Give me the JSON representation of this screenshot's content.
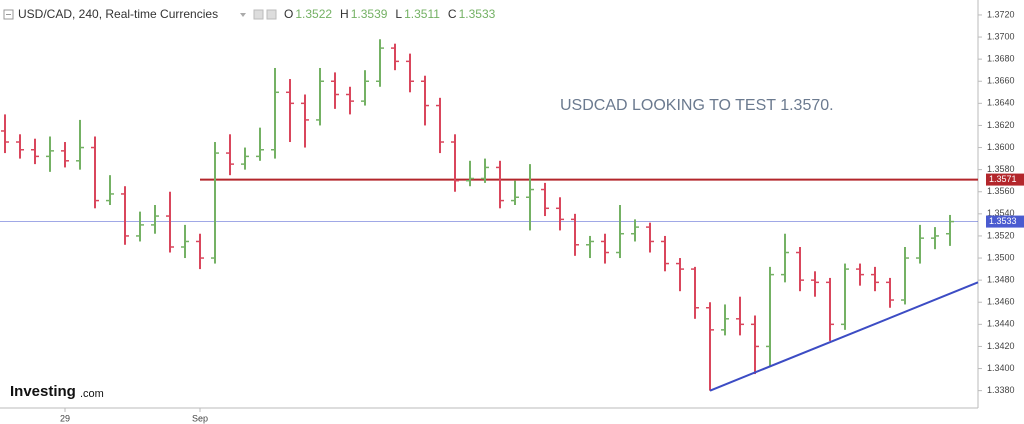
{
  "chart_data": {
    "type": "ohlc",
    "title": "USD/CAD, 240, Real-time Currencies",
    "header_labels": [
      "O",
      "H",
      "L",
      "C"
    ],
    "categories": [
      null,
      null,
      null,
      null,
      "29",
      null,
      null,
      null,
      null,
      null,
      null,
      null,
      null,
      "Sep",
      null,
      null,
      null,
      null,
      null,
      null,
      null,
      null,
      null,
      null,
      null,
      null,
      null,
      null,
      null,
      null,
      null,
      null,
      null,
      null,
      null,
      null,
      null,
      null,
      null,
      null,
      null,
      null,
      null,
      null,
      null,
      null,
      null,
      null,
      null,
      null,
      null,
      null,
      null,
      null,
      null,
      null,
      null,
      null,
      null,
      null,
      null,
      null,
      null,
      null
    ],
    "open": [
      1.3615,
      1.3605,
      1.3598,
      1.3592,
      1.3597,
      1.3588,
      1.36,
      1.3552,
      1.3558,
      1.352,
      1.353,
      1.3538,
      1.351,
      1.3515,
      1.35,
      1.3595,
      1.3585,
      1.3592,
      1.3598,
      1.365,
      1.364,
      1.3625,
      1.366,
      1.3648,
      1.3642,
      1.366,
      1.369,
      1.3678,
      1.366,
      1.3638,
      1.3605,
      1.357,
      1.3572,
      1.3582,
      1.3552,
      1.3555,
      1.3562,
      1.3545,
      1.3535,
      1.3512,
      1.3515,
      1.3505,
      1.3522,
      1.3528,
      1.3515,
      1.3495,
      1.349,
      1.3455,
      1.3435,
      1.3445,
      1.344,
      1.342,
      1.3485,
      1.3505,
      1.348,
      1.3478,
      1.344,
      1.349,
      1.3485,
      1.3478,
      1.3462,
      1.35,
      1.3518,
      1.3522
    ],
    "high": [
      1.363,
      1.3612,
      1.3608,
      1.361,
      1.3605,
      1.3625,
      1.361,
      1.3575,
      1.3565,
      1.3542,
      1.3548,
      1.356,
      1.353,
      1.3522,
      1.3605,
      1.3612,
      1.36,
      1.3618,
      1.3672,
      1.3662,
      1.3648,
      1.3672,
      1.3668,
      1.3655,
      1.367,
      1.3698,
      1.3694,
      1.3685,
      1.3665,
      1.3645,
      1.3612,
      1.3588,
      1.359,
      1.3588,
      1.357,
      1.3585,
      1.3568,
      1.3555,
      1.354,
      1.352,
      1.3522,
      1.3548,
      1.3535,
      1.3532,
      1.352,
      1.35,
      1.3492,
      1.346,
      1.3458,
      1.3465,
      1.3448,
      1.3492,
      1.3522,
      1.351,
      1.3488,
      1.3482,
      1.3495,
      1.3495,
      1.3492,
      1.3482,
      1.351,
      1.353,
      1.3528,
      1.3539
    ],
    "low": [
      1.3595,
      1.359,
      1.3585,
      1.3578,
      1.3582,
      1.358,
      1.3545,
      1.3548,
      1.3512,
      1.3515,
      1.3522,
      1.3505,
      1.35,
      1.349,
      1.3495,
      1.3575,
      1.358,
      1.3588,
      1.359,
      1.3605,
      1.36,
      1.362,
      1.3635,
      1.363,
      1.3638,
      1.3655,
      1.367,
      1.365,
      1.362,
      1.3595,
      1.356,
      1.3565,
      1.3568,
      1.3545,
      1.3548,
      1.3525,
      1.3538,
      1.3525,
      1.3502,
      1.35,
      1.3495,
      1.35,
      1.3515,
      1.3505,
      1.3488,
      1.347,
      1.3445,
      1.338,
      1.343,
      1.343,
      1.3395,
      1.3402,
      1.3478,
      1.347,
      1.3465,
      1.3425,
      1.3435,
      1.3475,
      1.347,
      1.3455,
      1.3458,
      1.3495,
      1.3508,
      1.3511
    ],
    "close": [
      1.3605,
      1.3598,
      1.3592,
      1.3597,
      1.3588,
      1.36,
      1.3552,
      1.3558,
      1.352,
      1.353,
      1.3538,
      1.351,
      1.3515,
      1.35,
      1.3595,
      1.3585,
      1.3592,
      1.3598,
      1.365,
      1.364,
      1.3625,
      1.366,
      1.3648,
      1.3642,
      1.366,
      1.369,
      1.3678,
      1.366,
      1.3638,
      1.3605,
      1.357,
      1.3572,
      1.3582,
      1.3552,
      1.3555,
      1.3562,
      1.3545,
      1.3535,
      1.3512,
      1.3515,
      1.3505,
      1.3522,
      1.3528,
      1.3515,
      1.3495,
      1.349,
      1.3455,
      1.3435,
      1.3445,
      1.344,
      1.342,
      1.3485,
      1.3505,
      1.348,
      1.3478,
      1.344,
      1.349,
      1.3485,
      1.3478,
      1.3462,
      1.35,
      1.3518,
      1.352,
      1.3533
    ],
    "up_color": "#74b164",
    "down_color": "#d9465c",
    "ylim": [
      1.3367,
      1.3729
    ],
    "yticks": [
      {
        "value": 1.338,
        "label": "1.3380"
      },
      {
        "value": 1.34,
        "label": "1.3400"
      },
      {
        "value": 1.342,
        "label": "1.3420"
      },
      {
        "value": 1.344,
        "label": "1.3440"
      },
      {
        "value": 1.346,
        "label": "1.3460"
      },
      {
        "value": 1.348,
        "label": "1.3480"
      },
      {
        "value": 1.35,
        "label": "1.3500"
      },
      {
        "value": 1.352,
        "label": "1.3520"
      },
      {
        "value": 1.354,
        "label": "1.3540"
      },
      {
        "value": 1.356,
        "label": "1.3560"
      },
      {
        "value": 1.358,
        "label": "1.3580"
      },
      {
        "value": 1.36,
        "label": "1.3600"
      },
      {
        "value": 1.362,
        "label": "1.3620"
      },
      {
        "value": 1.364,
        "label": "1.3640"
      },
      {
        "value": 1.366,
        "label": "1.3660"
      },
      {
        "value": 1.368,
        "label": "1.3680"
      },
      {
        "value": 1.37,
        "label": "1.3700"
      },
      {
        "value": 1.372,
        "label": "1.3720"
      }
    ],
    "annotation": "USDCAD LOOKING TO TEST 1.3570.",
    "levels": [
      {
        "value": 1.3571,
        "color": "#b3262b"
      },
      {
        "value": 1.3533,
        "color": "#4a5bd0"
      }
    ],
    "trendline": {
      "values": [
        1.338,
        1.3478
      ],
      "color": "#3c4cc4"
    },
    "logo": [
      "Investing",
      ".com"
    ]
  }
}
